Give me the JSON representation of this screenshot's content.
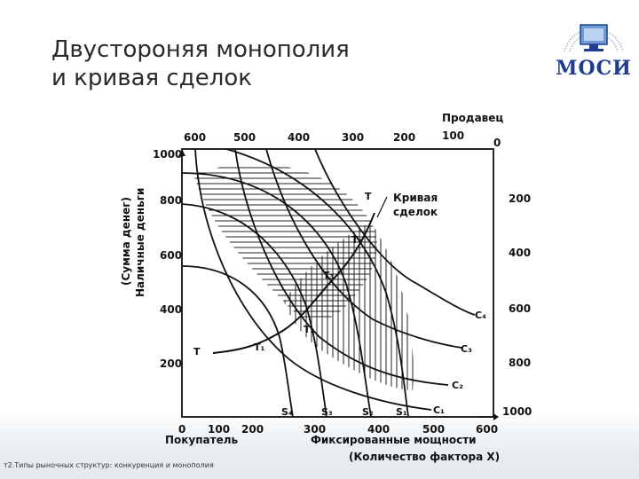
{
  "slide": {
    "title_line1": "Двустороняя монополия",
    "title_line2": "и кривая сделок",
    "logo_text": "МОСИ",
    "footer_text": "т2.Типы рыночных структур: конкуренция и монополия"
  },
  "diagram": {
    "seller_label": "Продавец",
    "buyer_label": "Покупатель",
    "y_axis_label_1": "(Сумма денег)",
    "y_axis_label_2": "Наличные деньги",
    "x_axis_label_1": "Фиксированные мощности",
    "x_axis_label_2": "(Количество фактора X)",
    "contract_curve_label_1": "Кривая",
    "contract_curve_label_2": "сделок",
    "top_ticks": [
      "600",
      "500",
      "400",
      "300",
      "200",
      "100",
      "0"
    ],
    "bottom_ticks": [
      "0",
      "100",
      "200",
      "300",
      "400",
      "500",
      "600"
    ],
    "left_ticks": [
      "1000",
      "800",
      "600",
      "400",
      "200"
    ],
    "right_ticks": [
      "200",
      "400",
      "600",
      "800",
      "1000"
    ],
    "buyer_curves": [
      "S₁",
      "S₂",
      "S₃",
      "S₄"
    ],
    "seller_curves": [
      "C₁",
      "C₂",
      "C₃",
      "C₄"
    ],
    "points": [
      "T",
      "T₁",
      "T₂",
      "T₃",
      "T₄",
      "T"
    ]
  }
}
